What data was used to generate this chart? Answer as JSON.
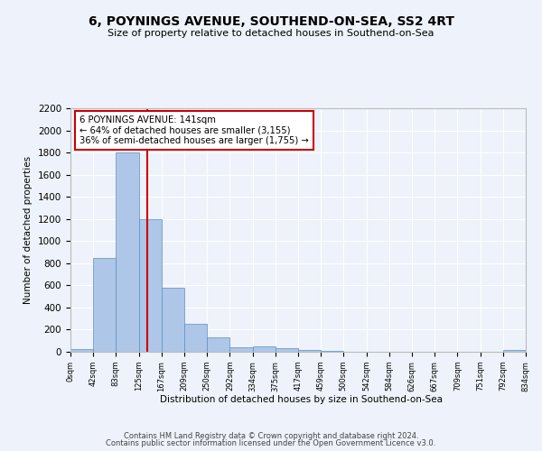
{
  "title": "6, POYNINGS AVENUE, SOUTHEND-ON-SEA, SS2 4RT",
  "subtitle": "Size of property relative to detached houses in Southend-on-Sea",
  "xlabel": "Distribution of detached houses by size in Southend-on-Sea",
  "ylabel": "Number of detached properties",
  "annotation_title": "6 POYNINGS AVENUE: 141sqm",
  "annotation_line1": "← 64% of detached houses are smaller (3,155)",
  "annotation_line2": "36% of semi-detached houses are larger (1,755) →",
  "footer1": "Contains HM Land Registry data © Crown copyright and database right 2024.",
  "footer2": "Contains public sector information licensed under the Open Government Licence v3.0.",
  "bin_edges": [
    0,
    42,
    83,
    125,
    167,
    209,
    250,
    292,
    334,
    375,
    417,
    459,
    500,
    542,
    584,
    626,
    667,
    709,
    751,
    792,
    834
  ],
  "bar_heights": [
    25,
    850,
    1800,
    1200,
    580,
    255,
    130,
    40,
    45,
    30,
    20,
    5,
    0,
    0,
    0,
    0,
    0,
    0,
    0,
    15
  ],
  "property_size": 141,
  "bar_color": "#aec6e8",
  "bar_edge_color": "#5a8fc2",
  "red_line_color": "#cc0000",
  "annotation_box_color": "#ffffff",
  "annotation_box_edge": "#cc0000",
  "background_color": "#eef2fa",
  "grid_color": "#ffffff",
  "ylim": [
    0,
    2200
  ],
  "yticks": [
    0,
    200,
    400,
    600,
    800,
    1000,
    1200,
    1400,
    1600,
    1800,
    2000,
    2200
  ]
}
